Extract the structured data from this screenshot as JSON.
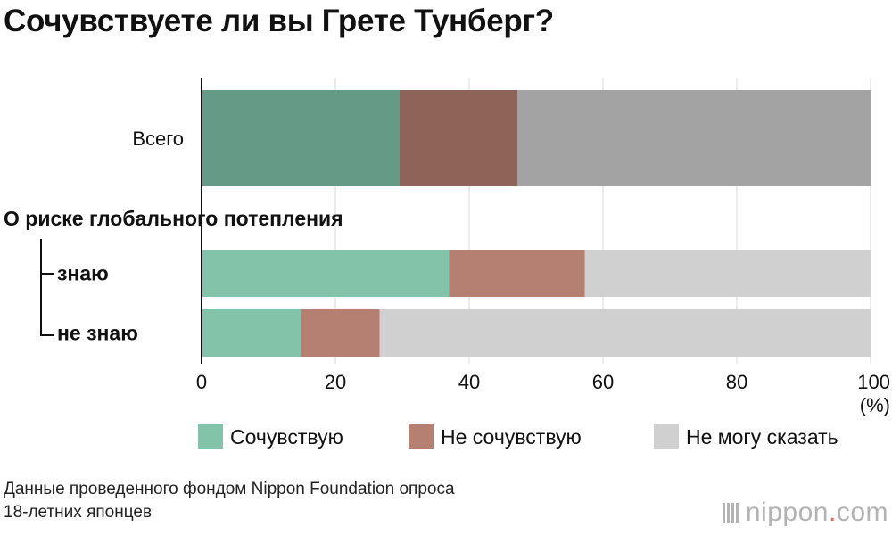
{
  "chart_data": {
    "type": "bar",
    "orientation": "horizontal",
    "stacked": true,
    "title": "Сочувствуете ли вы Грете Тунберг?",
    "unit_label": "(%)",
    "xlim": [
      0,
      100
    ],
    "x_ticks": [
      "0",
      "20",
      "40",
      "60",
      "80",
      "100"
    ],
    "group_label": "О риске глобального потепления",
    "rows": [
      {
        "label": "Всего",
        "values": [
          29.6,
          17.6,
          52.8
        ],
        "style": "dark"
      },
      {
        "label": "знаю",
        "values": [
          37.0,
          20.3,
          42.7
        ],
        "style": "light"
      },
      {
        "label": "не знаю",
        "values": [
          14.8,
          11.8,
          73.4
        ],
        "style": "light"
      }
    ],
    "series": [
      {
        "name": "Сочувствую"
      },
      {
        "name": "Не сочувствую"
      },
      {
        "name": "Не могу сказать"
      }
    ],
    "colors": {
      "dark": [
        "#659a86",
        "#8e6459",
        "#a3a3a3"
      ],
      "light": [
        "#82c3a9",
        "#b58071",
        "#d0d0d0"
      ]
    }
  },
  "footnote": {
    "line1": "Данные проведенного фондом Nippon Foundation опроса",
    "line2": "18-летних японцев"
  },
  "brand": {
    "name": "nippon",
    "dot": ".",
    "tld": "com"
  }
}
